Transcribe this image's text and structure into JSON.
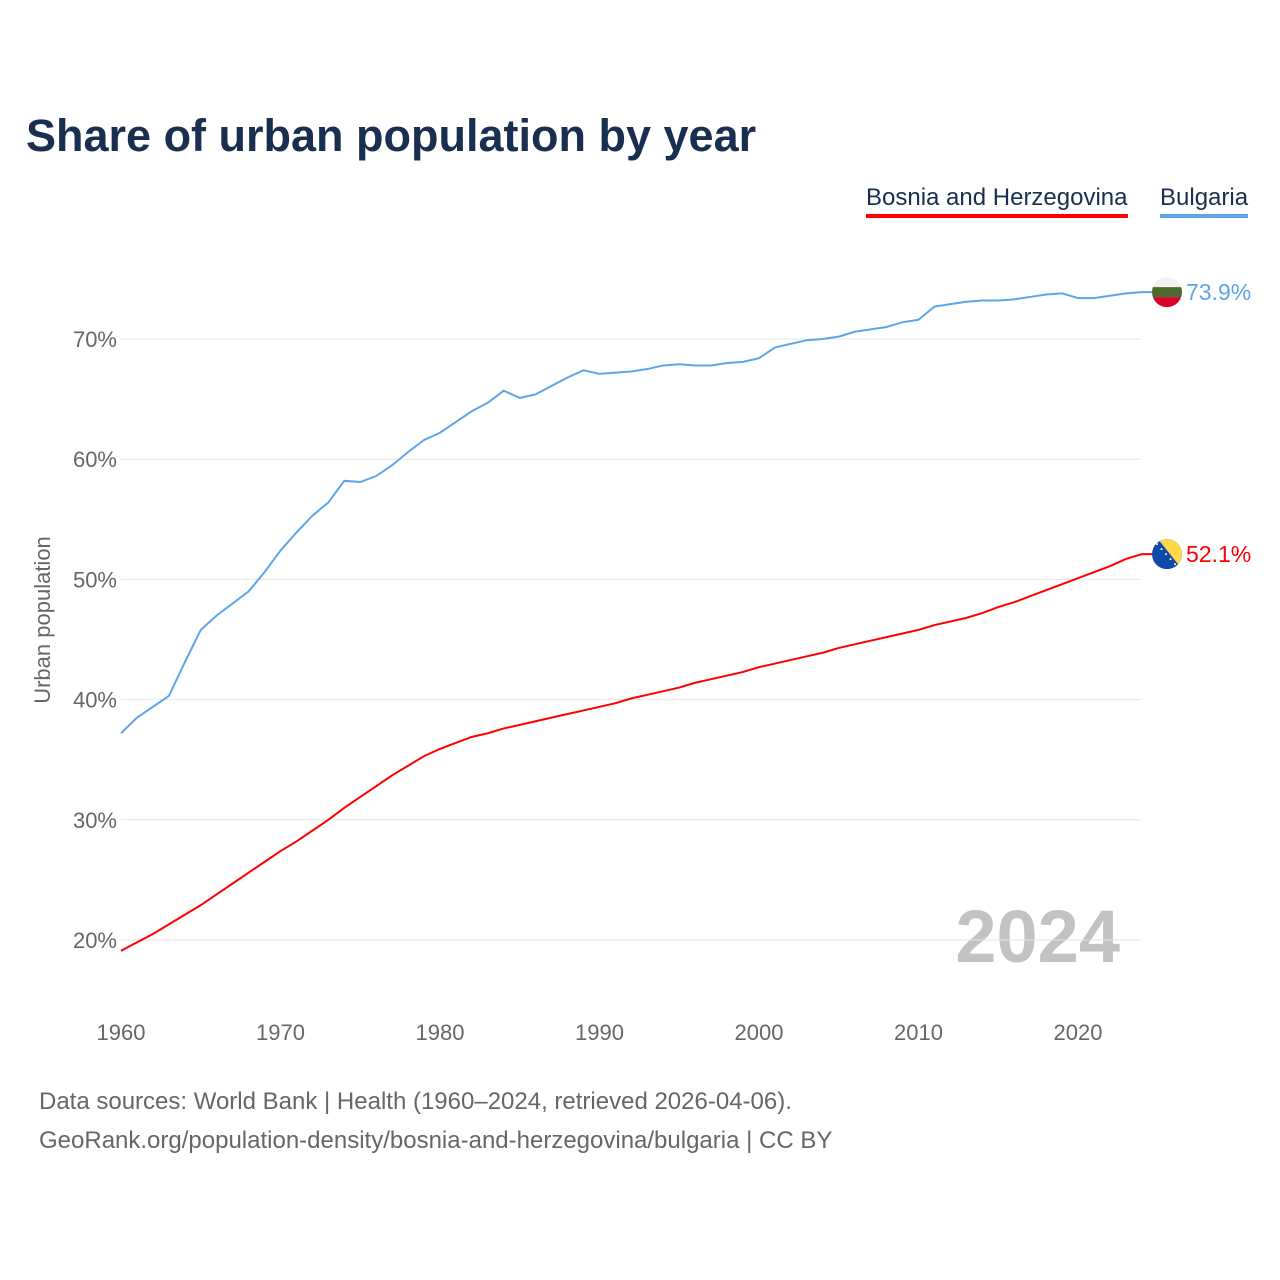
{
  "title": "Share of urban population by year",
  "chart_data": {
    "type": "line",
    "title": "Share of urban population by year",
    "xlabel": "",
    "ylabel": "Urban population",
    "xlim": [
      1960,
      2024
    ],
    "ylim": [
      15,
      76
    ],
    "x_ticks": [
      "1960",
      "1970",
      "1980",
      "1990",
      "2000",
      "2010",
      "2020"
    ],
    "y_ticks": [
      {
        "v": 20,
        "label": "20%"
      },
      {
        "v": 30,
        "label": "30%"
      },
      {
        "v": 40,
        "label": "40%"
      },
      {
        "v": 50,
        "label": "50%"
      },
      {
        "v": 60,
        "label": "60%"
      },
      {
        "v": 70,
        "label": "70%"
      }
    ],
    "grid": true,
    "legend_placement": "top-right",
    "year_watermark": "2024",
    "x": [
      1960,
      1961,
      1962,
      1963,
      1964,
      1965,
      1966,
      1967,
      1968,
      1969,
      1970,
      1971,
      1972,
      1973,
      1974,
      1975,
      1976,
      1977,
      1978,
      1979,
      1980,
      1981,
      1982,
      1983,
      1984,
      1985,
      1986,
      1987,
      1988,
      1989,
      1990,
      1991,
      1992,
      1993,
      1994,
      1995,
      1996,
      1997,
      1998,
      1999,
      2000,
      2001,
      2002,
      2003,
      2004,
      2005,
      2006,
      2007,
      2008,
      2009,
      2010,
      2011,
      2012,
      2013,
      2014,
      2015,
      2016,
      2017,
      2018,
      2019,
      2020,
      2021,
      2022,
      2023,
      2024
    ],
    "series": [
      {
        "name": "Bosnia and Herzegovina",
        "color": "#ff0000",
        "end_label": "52.1%",
        "flag": "bosnia-flag",
        "values": [
          19.1,
          19.8,
          20.5,
          21.3,
          22.1,
          22.9,
          23.8,
          24.7,
          25.6,
          26.5,
          27.4,
          28.2,
          29.1,
          30.0,
          31.0,
          31.9,
          32.8,
          33.7,
          34.5,
          35.3,
          35.9,
          36.4,
          36.9,
          37.2,
          37.6,
          37.9,
          38.2,
          38.5,
          38.8,
          39.1,
          39.4,
          39.7,
          40.1,
          40.4,
          40.7,
          41.0,
          41.4,
          41.7,
          42.0,
          42.3,
          42.7,
          43.0,
          43.3,
          43.6,
          43.9,
          44.3,
          44.6,
          44.9,
          45.2,
          45.5,
          45.8,
          46.2,
          46.5,
          46.8,
          47.2,
          47.7,
          48.1,
          48.6,
          49.1,
          49.6,
          50.1,
          50.6,
          51.1,
          51.7,
          52.1
        ]
      },
      {
        "name": "Bulgaria",
        "color": "#5ea5e8",
        "end_label": "73.9%",
        "flag": "bulgaria-flag",
        "values": [
          37.2,
          38.5,
          39.4,
          40.3,
          43.1,
          45.8,
          47.0,
          48.0,
          49.0,
          50.6,
          52.4,
          53.9,
          55.3,
          56.4,
          58.2,
          58.1,
          58.6,
          59.5,
          60.6,
          61.6,
          62.2,
          63.1,
          64.0,
          64.7,
          65.7,
          65.1,
          65.4,
          66.1,
          66.8,
          67.4,
          67.1,
          67.2,
          67.3,
          67.5,
          67.8,
          67.9,
          67.8,
          67.8,
          68.0,
          68.1,
          68.4,
          69.3,
          69.6,
          69.9,
          70.0,
          70.2,
          70.6,
          70.8,
          71.0,
          71.4,
          71.6,
          72.7,
          72.9,
          73.1,
          73.2,
          73.2,
          73.3,
          73.5,
          73.7,
          73.8,
          73.4,
          73.4,
          73.6,
          73.8,
          73.9
        ]
      }
    ]
  },
  "footer": {
    "line1": "Data sources: World Bank | Health (1960–2024, retrieved 2026-04-06).",
    "line2": "GeoRank.org/population-density/bosnia-and-herzegovina/bulgaria | CC BY"
  }
}
